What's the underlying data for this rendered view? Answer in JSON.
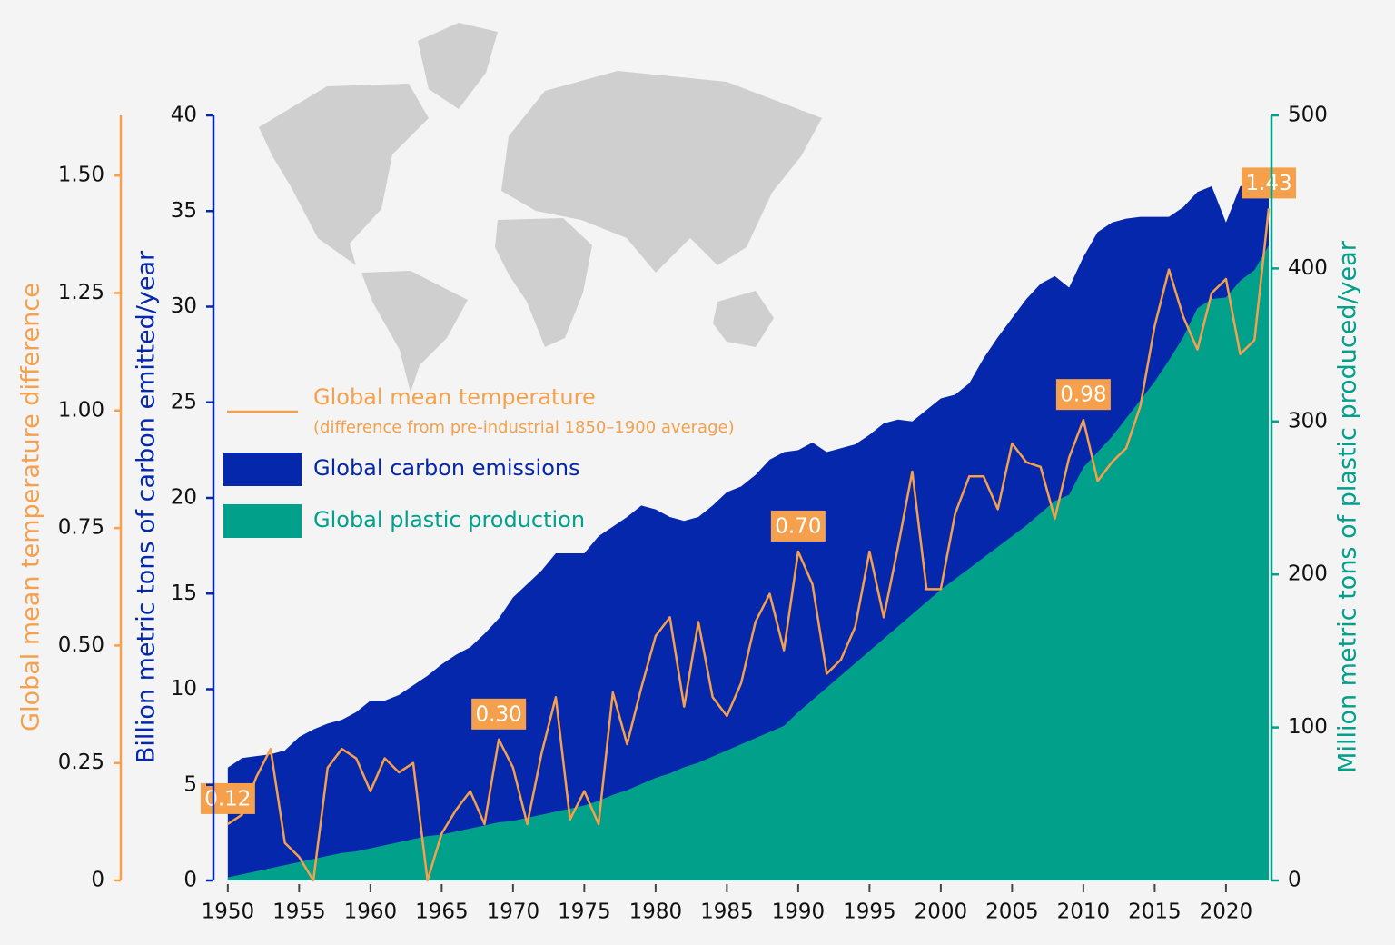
{
  "chart_data": {
    "type": "area",
    "ylabel": "Billion metric tons of carbon emitted/year",
    "y2label": "Million metric tons of plastic produced/year",
    "y3label": "Global mean temperature difference",
    "x": [
      1950,
      1951,
      1952,
      1953,
      1954,
      1955,
      1956,
      1957,
      1958,
      1959,
      1960,
      1961,
      1962,
      1963,
      1964,
      1965,
      1966,
      1967,
      1968,
      1969,
      1970,
      1971,
      1972,
      1973,
      1974,
      1975,
      1976,
      1977,
      1978,
      1979,
      1980,
      1981,
      1982,
      1983,
      1984,
      1985,
      1986,
      1987,
      1988,
      1989,
      1990,
      1991,
      1992,
      1993,
      1994,
      1995,
      1996,
      1997,
      1998,
      1999,
      2000,
      2001,
      2002,
      2003,
      2004,
      2005,
      2006,
      2007,
      2008,
      2009,
      2010,
      2011,
      2012,
      2013,
      2014,
      2015,
      2016,
      2017,
      2018,
      2019,
      2020,
      2021,
      2022,
      2023
    ],
    "xlim": [
      1949.5,
      2023
    ],
    "xticks": [
      1950,
      1955,
      1960,
      1965,
      1970,
      1975,
      1980,
      1985,
      1990,
      1995,
      2000,
      2005,
      2010,
      2015,
      2020
    ],
    "ylim": [
      0,
      40
    ],
    "yticks": [
      0,
      5,
      10,
      15,
      20,
      25,
      30,
      35,
      40
    ],
    "y2lim": [
      0,
      500
    ],
    "y2ticks": [
      0,
      100,
      200,
      300,
      400,
      500
    ],
    "y3lim": [
      0,
      1.628
    ],
    "y3ticks": [
      0,
      0.25,
      {
        "value": 0.5,
        "label": "0.50"
      },
      0.75,
      {
        "value": 1,
        "label": "1.00"
      },
      1.25,
      {
        "value": 1.5,
        "label": "1.50"
      }
    ],
    "series": [
      {
        "name": "Global carbon emissions",
        "type": "area",
        "axis": "y",
        "color": "#0527ac",
        "values": [
          5.9,
          6.4,
          6.5,
          6.6,
          6.8,
          7.5,
          7.9,
          8.2,
          8.4,
          8.8,
          9.4,
          9.4,
          9.7,
          10.2,
          10.7,
          11.3,
          11.8,
          12.2,
          12.9,
          13.7,
          14.8,
          15.5,
          16.2,
          17.1,
          17.1,
          17.1,
          18.0,
          18.5,
          19.0,
          19.6,
          19.4,
          19.0,
          18.8,
          19.0,
          19.6,
          20.3,
          20.6,
          21.2,
          22.0,
          22.4,
          22.5,
          22.9,
          22.4,
          22.6,
          22.8,
          23.3,
          23.9,
          24.1,
          24.0,
          24.6,
          25.2,
          25.4,
          26.0,
          27.3,
          28.4,
          29.4,
          30.4,
          31.2,
          31.6,
          31.0,
          32.6,
          33.9,
          34.4,
          34.6,
          34.7,
          34.7,
          34.7,
          35.2,
          36.0,
          36.3,
          34.4,
          36.3,
          36.4,
          35.8
        ]
      },
      {
        "name": "Global plastic production",
        "type": "area",
        "axis": "y2",
        "color": "#00a08b",
        "values": [
          2,
          4,
          6,
          8,
          10,
          12,
          14,
          16,
          18,
          19,
          21,
          23,
          25,
          27,
          29,
          30,
          32,
          34,
          36,
          38,
          39,
          41,
          43,
          45,
          47,
          49,
          52,
          56,
          59,
          63,
          67,
          70,
          74,
          77,
          81,
          85,
          89,
          93,
          97,
          101,
          110,
          118,
          126,
          134,
          142,
          150,
          158,
          166,
          174,
          182,
          190,
          197,
          204,
          211,
          218,
          225,
          232,
          240,
          248,
          252,
          270,
          280,
          290,
          302,
          314,
          326,
          340,
          355,
          374,
          380,
          381,
          392,
          399,
          415
        ]
      },
      {
        "name": "Global mean temperature",
        "description": "(difference from pre-industrial 1850–1900 average)",
        "type": "line",
        "axis": "y3",
        "color": "#f5a04c",
        "values": [
          0.12,
          0.14,
          0.22,
          0.28,
          0.08,
          0.05,
          0.0,
          0.24,
          0.28,
          0.26,
          0.19,
          0.26,
          0.23,
          0.25,
          0.0,
          0.1,
          0.15,
          0.19,
          0.12,
          0.3,
          0.24,
          0.12,
          0.27,
          0.39,
          0.13,
          0.19,
          0.12,
          0.4,
          0.29,
          0.41,
          0.52,
          0.56,
          0.37,
          0.55,
          0.39,
          0.35,
          0.42,
          0.55,
          0.61,
          0.49,
          0.7,
          0.63,
          0.44,
          0.47,
          0.54,
          0.7,
          0.56,
          0.71,
          0.87,
          0.62,
          0.62,
          0.78,
          0.86,
          0.86,
          0.79,
          0.93,
          0.89,
          0.88,
          0.77,
          0.9,
          0.98,
          0.85,
          0.89,
          0.92,
          1.01,
          1.18,
          1.3,
          1.2,
          1.13,
          1.25,
          1.28,
          1.12,
          1.15,
          1.43
        ],
        "value_labels": [
          "0.12",
          null,
          null,
          null,
          null,
          null,
          null,
          null,
          null,
          null,
          null,
          null,
          null,
          null,
          null,
          null,
          null,
          null,
          null,
          "0.30",
          null,
          null,
          null,
          null,
          null,
          null,
          null,
          null,
          null,
          null,
          null,
          null,
          null,
          null,
          null,
          null,
          null,
          null,
          null,
          null,
          "0.70",
          null,
          null,
          null,
          null,
          null,
          null,
          null,
          null,
          null,
          null,
          null,
          null,
          null,
          null,
          null,
          null,
          null,
          null,
          null,
          "0.98",
          null,
          null,
          null,
          null,
          null,
          null,
          null,
          null,
          null,
          null,
          null,
          null,
          "1.43"
        ]
      }
    ]
  }
}
